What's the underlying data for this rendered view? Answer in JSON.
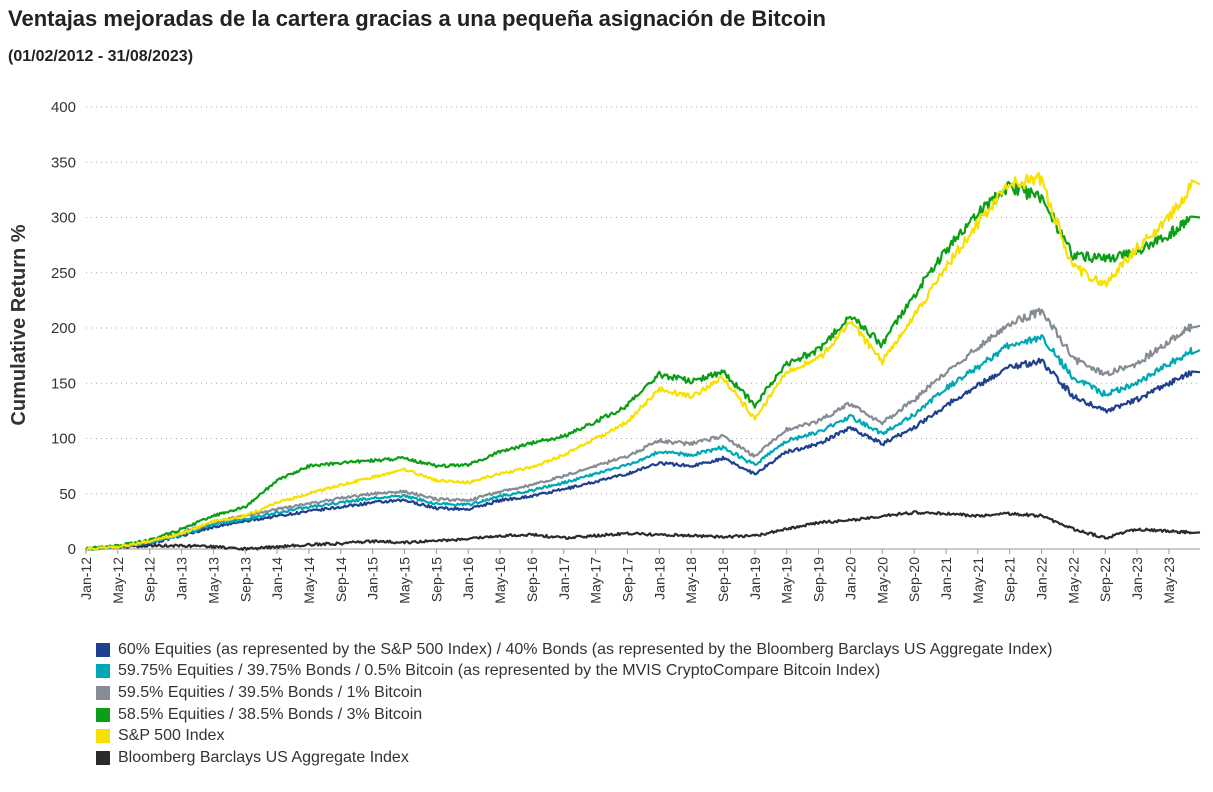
{
  "chart_data": {
    "type": "line",
    "title": "Ventajas mejoradas de la cartera gracias a una pequeña asignación de Bitcoin",
    "subtitle": "(01/02/2012 - 31/08/2023)",
    "xlabel": "",
    "ylabel": "Cumulative Return %",
    "ylim": [
      0,
      400
    ],
    "yticks": [
      "0",
      "50",
      "100",
      "150",
      "200",
      "250",
      "300",
      "350",
      "400"
    ],
    "grid": "horizontal-dotted",
    "legend_position": "bottom",
    "xtick_labels": [
      "Jan-12",
      "May-12",
      "Sep-12",
      "Jan-13",
      "May-13",
      "Sep-13",
      "Jan-14",
      "May-14",
      "Sep-14",
      "Jan-15",
      "May-15",
      "Sep-15",
      "Jan-16",
      "May-16",
      "Sep-16",
      "Jan-17",
      "May-17",
      "Sep-17",
      "Jan-18",
      "May-18",
      "Sep-18",
      "Jan-19",
      "May-19",
      "Sep-19",
      "Jan-20",
      "May-20",
      "Sep-20",
      "Jan-21",
      "May-21",
      "Sep-21",
      "Jan-22",
      "May-22",
      "Sep-22",
      "Jan-23",
      "May-23"
    ],
    "x": [
      "2012-01",
      "2012-05",
      "2012-09",
      "2013-01",
      "2013-05",
      "2013-09",
      "2014-01",
      "2014-05",
      "2014-09",
      "2015-01",
      "2015-05",
      "2015-09",
      "2016-01",
      "2016-05",
      "2016-09",
      "2017-01",
      "2017-05",
      "2017-09",
      "2018-01",
      "2018-05",
      "2018-09",
      "2019-01",
      "2019-05",
      "2019-09",
      "2020-01",
      "2020-05",
      "2020-09",
      "2021-01",
      "2021-05",
      "2021-09",
      "2022-01",
      "2022-05",
      "2022-09",
      "2023-01",
      "2023-05",
      "2023-08"
    ],
    "series": [
      {
        "name": "60% Equities (as represented by the S&P 500 Index) / 40% Bonds (as represented by the Bloomberg Barclays US Aggregate Index)",
        "color": "#1f3f8f",
        "values": [
          0,
          2,
          5,
          12,
          20,
          25,
          30,
          34,
          38,
          42,
          44,
          37,
          36,
          44,
          48,
          54,
          61,
          68,
          78,
          75,
          82,
          68,
          88,
          95,
          110,
          95,
          110,
          130,
          148,
          165,
          170,
          138,
          125,
          135,
          150,
          160
        ]
      },
      {
        "name": "59.75% Equities / 39.75% Bonds / 0.5% Bitcoin (as represented by the MVIS CryptoCompare Bitcoin Index)",
        "color": "#00a8b5",
        "values": [
          0,
          2,
          6,
          13,
          22,
          27,
          33,
          38,
          42,
          46,
          48,
          41,
          40,
          48,
          53,
          60,
          68,
          76,
          88,
          85,
          92,
          76,
          98,
          106,
          120,
          104,
          122,
          145,
          165,
          185,
          192,
          155,
          140,
          150,
          168,
          180
        ]
      },
      {
        "name": "59.5% Equities / 39.5% Bonds / 1% Bitcoin",
        "color": "#868c94",
        "values": [
          0,
          2,
          6,
          15,
          24,
          30,
          36,
          41,
          46,
          50,
          52,
          45,
          44,
          52,
          58,
          66,
          75,
          84,
          98,
          95,
          102,
          84,
          108,
          116,
          132,
          114,
          135,
          160,
          182,
          205,
          215,
          172,
          158,
          168,
          188,
          202
        ]
      },
      {
        "name": "58.5% Equities / 38.5% Bonds / 3% Bitcoin",
        "color": "#0c9e16",
        "values": [
          0,
          3,
          8,
          18,
          30,
          38,
          62,
          75,
          78,
          80,
          82,
          75,
          76,
          88,
          96,
          102,
          115,
          130,
          158,
          152,
          160,
          130,
          168,
          180,
          212,
          185,
          230,
          270,
          305,
          328,
          318,
          265,
          262,
          268,
          285,
          300
        ]
      },
      {
        "name": "S&P 500 Index",
        "color": "#f7e100",
        "values": [
          0,
          2,
          7,
          14,
          25,
          30,
          42,
          50,
          58,
          65,
          72,
          62,
          60,
          68,
          74,
          85,
          100,
          115,
          145,
          138,
          155,
          118,
          160,
          172,
          205,
          170,
          210,
          255,
          295,
          330,
          335,
          255,
          240,
          272,
          300,
          330
        ]
      },
      {
        "name": "Bloomberg Barclays US Aggregate Index",
        "color": "#2b2b2b",
        "values": [
          0,
          2,
          3,
          3,
          2,
          0,
          2,
          4,
          5,
          7,
          6,
          7,
          9,
          12,
          13,
          10,
          12,
          14,
          13,
          12,
          11,
          12,
          18,
          24,
          26,
          30,
          33,
          32,
          30,
          32,
          30,
          18,
          10,
          18,
          16,
          15
        ]
      }
    ]
  }
}
